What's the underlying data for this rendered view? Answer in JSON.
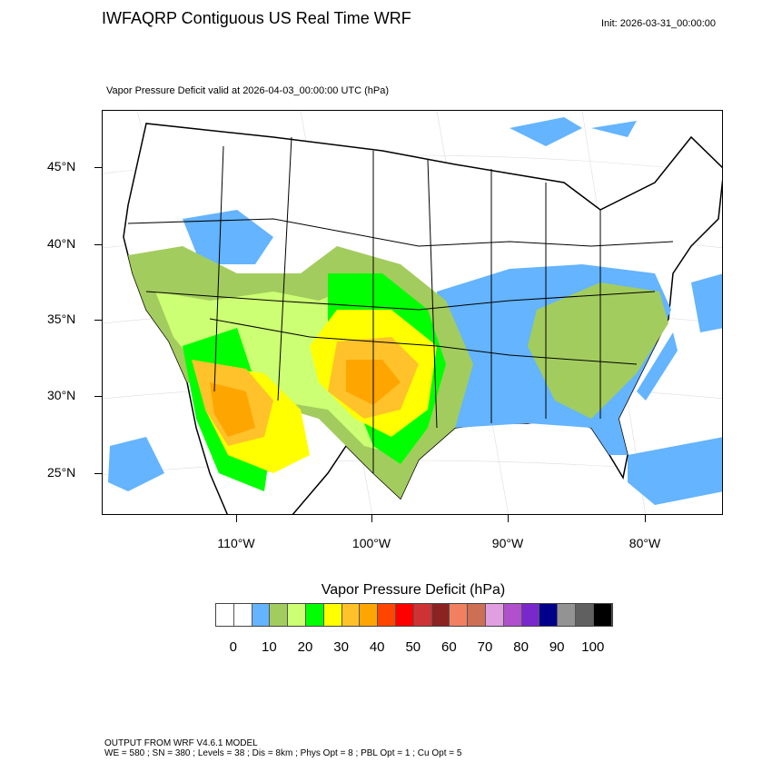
{
  "header": {
    "title": "IWFAQRP Contiguous US Real Time WRF",
    "init": "Init: 2026-03-31_00:00:00",
    "subtitle": "Vapor Pressure Deficit valid at 2026-04-03_00:00:00 UTC   (hPa)"
  },
  "map": {
    "lat_labels": [
      "45°N",
      "40°N",
      "35°N",
      "30°N",
      "25°N"
    ],
    "lon_labels": [
      "110°W",
      "100°W",
      "90°W",
      "80°W"
    ]
  },
  "colorbar": {
    "title": "Vapor Pressure Deficit  (hPa)",
    "labels": [
      "0",
      "10",
      "20",
      "30",
      "40",
      "50",
      "60",
      "70",
      "80",
      "90",
      "100"
    ],
    "colors": [
      "#ffffff",
      "#ffffff",
      "#64b4ff",
      "#a3cc5e",
      "#ccff73",
      "#00ff00",
      "#ffff00",
      "#ffc22a",
      "#ffa500",
      "#ff4500",
      "#ff0000",
      "#cd3333",
      "#8b2323",
      "#f08060",
      "#cd6f55",
      "#e0a0e0",
      "#b050cc",
      "#7a28cc",
      "#00008b",
      "#939393",
      "#606060",
      "#000000"
    ]
  },
  "footer": {
    "line1": "OUTPUT FROM WRF V4.6.1 MODEL",
    "line2": "WE = 580 ; SN = 380 ; Levels = 38 ; Dis = 8km ; Phys Opt = 8 ; PBL Opt = 1 ; Cu Opt = 5"
  }
}
